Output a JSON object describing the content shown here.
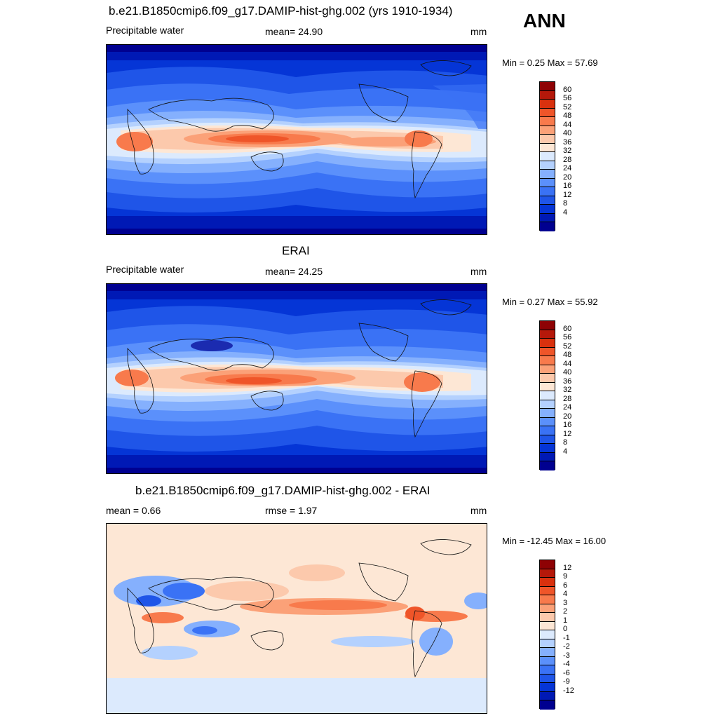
{
  "season": "ANN",
  "colors": {
    "abs_scale": [
      "#000090",
      "#0019b5",
      "#0535d6",
      "#1f55e8",
      "#3a72f5",
      "#5b90fb",
      "#85b0fd",
      "#b4d1fe",
      "#dceafd",
      "#fde7d5",
      "#fcc9ac",
      "#fba178",
      "#f87a4c",
      "#ef5529",
      "#d9310e",
      "#b5180a",
      "#8e0204"
    ],
    "diff_scale": [
      "#000090",
      "#0019b5",
      "#0535d6",
      "#1f55e8",
      "#3a72f5",
      "#5b90fb",
      "#85b0fd",
      "#b4d1fe",
      "#dceafd",
      "#fde7d5",
      "#fcc9ac",
      "#fba178",
      "#f87a4c",
      "#ef5529",
      "#d9310e",
      "#b5180a",
      "#8e0204"
    ]
  },
  "panels": [
    {
      "title": "b.e21.B1850cmip6.f09_g17.DAMIP-hist-ghg.002 (yrs 1910-1934)",
      "left_label": "Precipitable water",
      "center_label": "mean=  24.90",
      "units": "mm",
      "minmax": "Min =   0.25 Max =  57.69",
      "levels": [
        "60",
        "56",
        "52",
        "48",
        "44",
        "40",
        "36",
        "32",
        "28",
        "24",
        "20",
        "16",
        "12",
        "8",
        "4"
      ]
    },
    {
      "title": "ERAI",
      "left_label": "Precipitable water",
      "center_label": "mean=  24.25",
      "units": "mm",
      "minmax": "Min =   0.27 Max =  55.92",
      "levels": [
        "60",
        "56",
        "52",
        "48",
        "44",
        "40",
        "36",
        "32",
        "28",
        "24",
        "20",
        "16",
        "12",
        "8",
        "4"
      ]
    },
    {
      "title": "b.e21.B1850cmip6.f09_g17.DAMIP-hist-ghg.002 - ERAI",
      "left_label": "mean =   0.66",
      "center_label": "rmse =   1.97",
      "units": "mm",
      "minmax": "Min = -12.45 Max =  16.00",
      "levels": [
        "12",
        "9",
        "6",
        "4",
        "3",
        "2",
        "1",
        "0",
        "-1",
        "-2",
        "-3",
        "-4",
        "-6",
        "-9",
        "-12"
      ]
    }
  ]
}
